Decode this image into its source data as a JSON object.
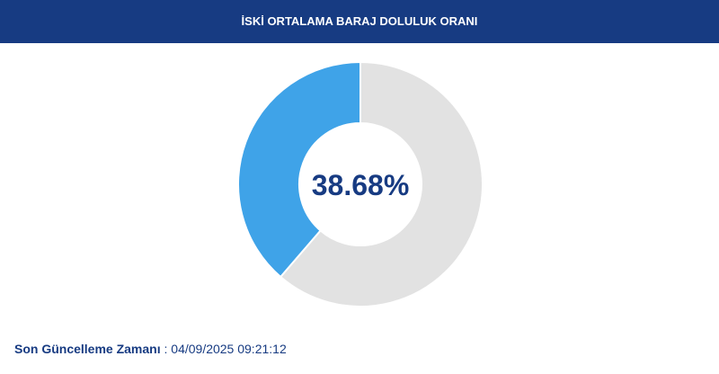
{
  "chart_data": {
    "type": "donut",
    "title": "İSKİ ORTALAMA BARAJ DOLULUK ORANI",
    "values": [
      38.68,
      61.32
    ],
    "value_labels": [
      "38.68%",
      null
    ],
    "colors": [
      "#3fa3e8",
      "#e2e2e2"
    ]
  },
  "footer": {
    "label": "Son Güncelleme Zamanı",
    "value": ": 04/09/2025 09:21:12"
  }
}
